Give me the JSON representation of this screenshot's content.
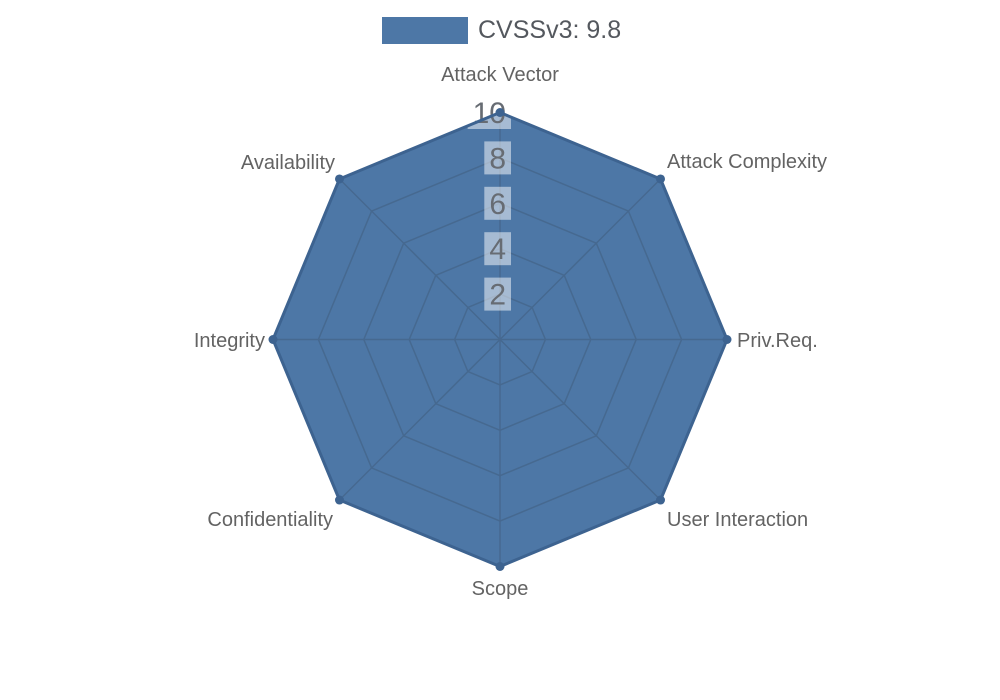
{
  "legend": {
    "items": [
      {
        "label": "CVSSv3: 9.8",
        "color": "#4d77a6"
      }
    ]
  },
  "chart_data": {
    "type": "radar",
    "axes": [
      "Attack Vector",
      "Attack Complexity",
      "Priv.Req.",
      "User Interaction",
      "Scope",
      "Confidentiality",
      "Integrity",
      "Availability"
    ],
    "series": [
      {
        "name": "CVSSv3: 9.8",
        "values": [
          10,
          10,
          10,
          10,
          10,
          10,
          10,
          10
        ],
        "fill_color": "#4d77a6",
        "border_color": "#3d6390"
      }
    ],
    "radial_ticks": [
      2,
      4,
      6,
      8,
      10
    ],
    "rlim": [
      0,
      10
    ],
    "grid": true,
    "grid_shape": "polygon",
    "legend_position": "top",
    "colors": {
      "grid_line": "#466990",
      "tick_text": "#676c73",
      "tick_backdrop": "rgba(255,255,255,0.5)",
      "axis_label": "#636363",
      "legend_text": "#54585e",
      "background": "#ffffff"
    }
  }
}
